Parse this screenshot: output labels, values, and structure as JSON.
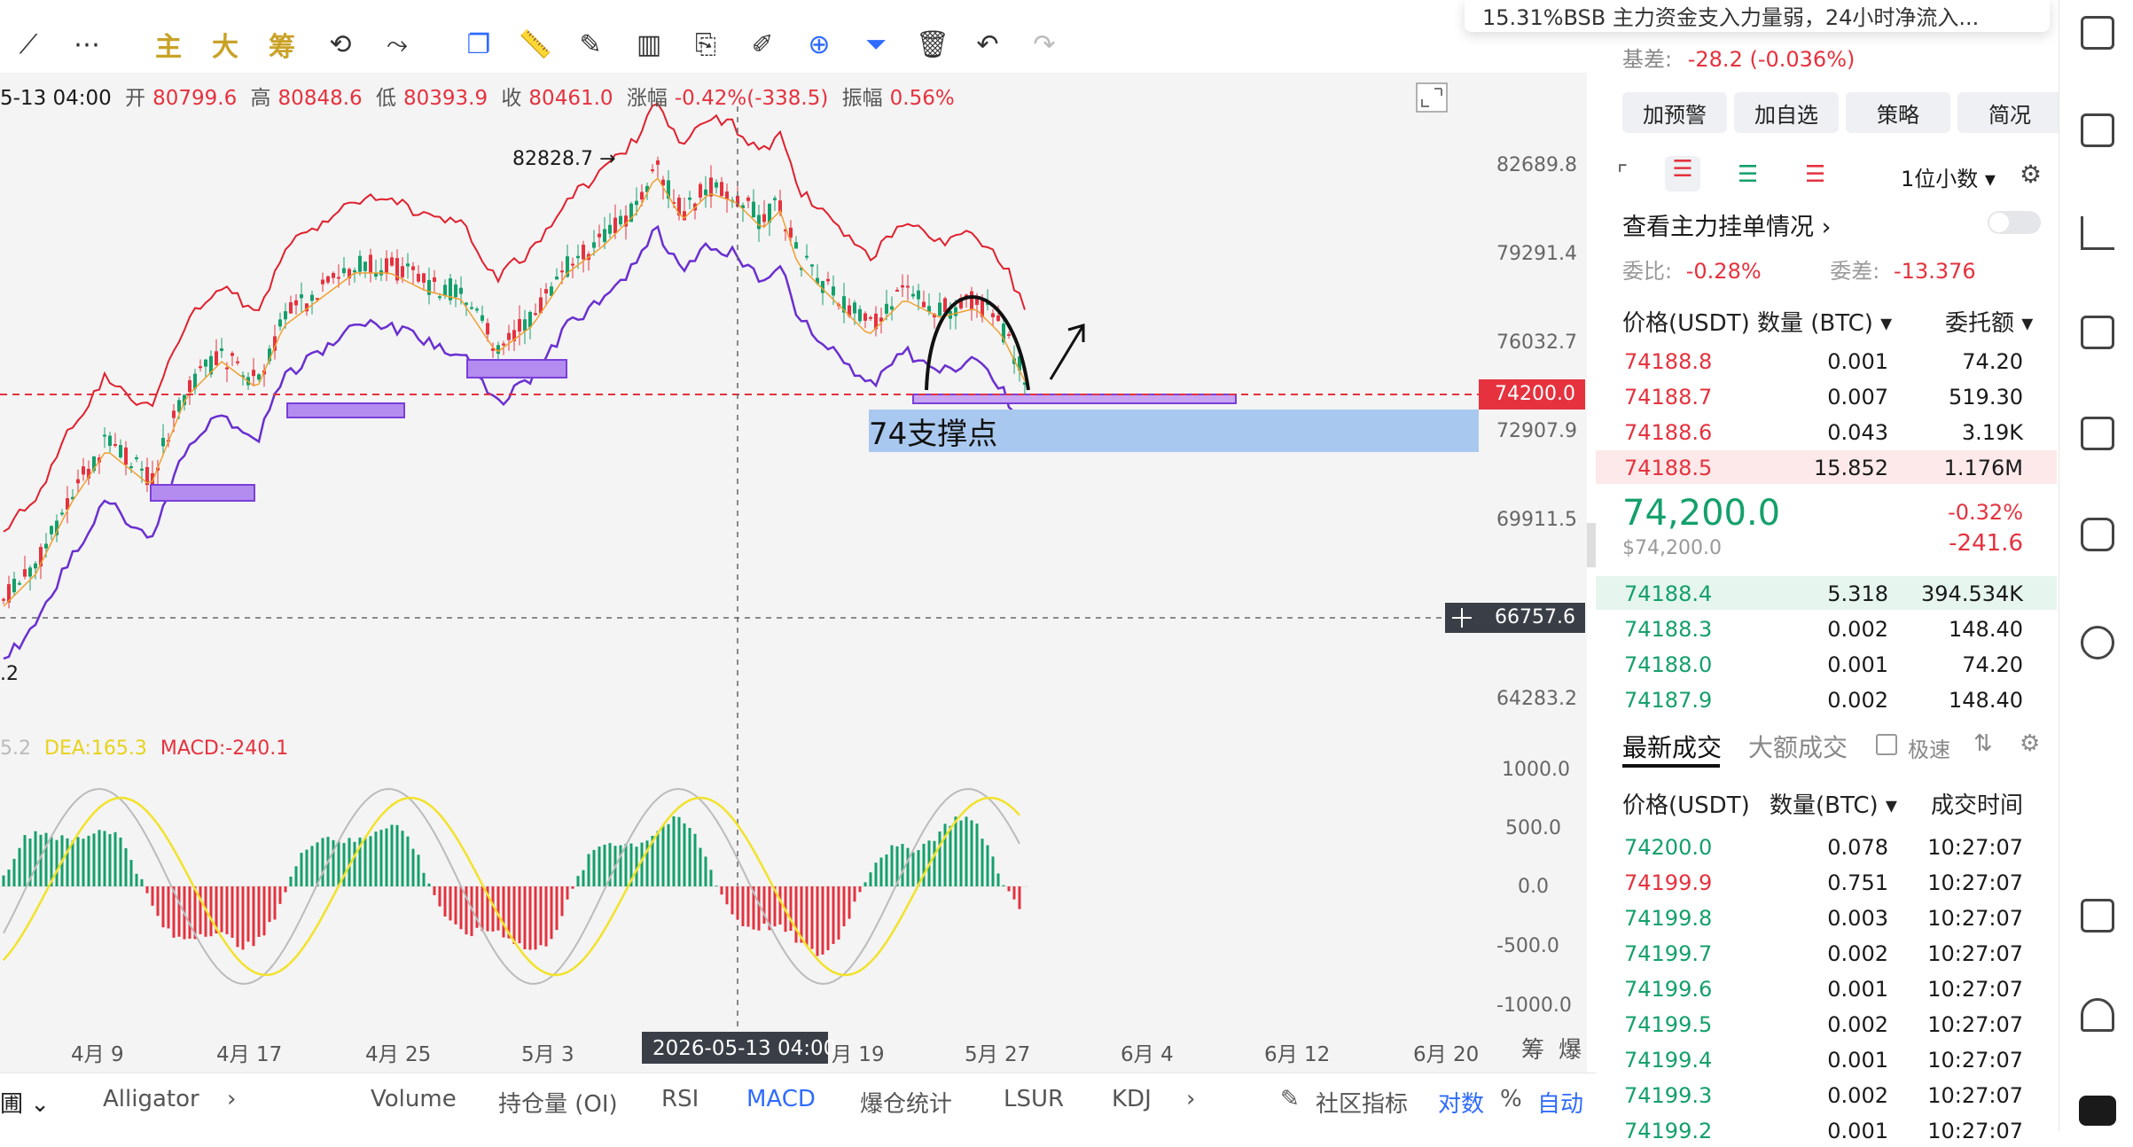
{
  "toolbar": {
    "zh_buttons": [
      "主",
      "大",
      "筹"
    ]
  },
  "ohlc": {
    "time": "5-13 04:00",
    "open_label": "开",
    "open": "80799.6",
    "high_label": "高",
    "high": "80848.6",
    "low_label": "低",
    "low": "80393.9",
    "close_label": "收",
    "close": "80461.0",
    "chg_label": "涨幅",
    "chg": "-0.42%(-338.5)",
    "amp_label": "振幅",
    "amp": "0.56%"
  },
  "chart": {
    "high_annotation": "82828.7 →",
    "left_value": ".2",
    "support_label": "74支撑点",
    "current_price_tag": "74200.0",
    "crosshair_price_tag": "66757.6",
    "crosshair_time_tag": "2026-05-13 04:00",
    "price_axis": [
      "82689.8",
      "79291.4",
      "76032.7",
      "72907.9",
      "69911.5",
      "64283.2"
    ],
    "macd_axis": [
      "1000.0",
      "500.0",
      "0.0",
      "-500.0",
      "-1000.0"
    ],
    "time_axis": [
      "4月 9",
      "4月 17",
      "4月 25",
      "5月 3",
      "月 19",
      "5月 27",
      "6月 4",
      "6月 12",
      "6月 20"
    ],
    "corner_labels": [
      "筹",
      "爆"
    ]
  },
  "chart_data": {
    "type": "line",
    "title": "",
    "macd_legend": {
      "dif_fragment": "5.2",
      "dea": "DEA:165.3",
      "macd": "MACD:-240.1"
    }
  },
  "bottom_bar": {
    "left_fragment": "圃",
    "items": [
      "Alligator",
      "Volume",
      "持仓量 (OI)",
      "RSI",
      "MACD",
      "爆仓统计",
      "LSUR",
      "KDJ"
    ],
    "community": "社区指标",
    "log": "对数",
    "pct": "%",
    "auto": "自动"
  },
  "notice": {
    "text": "15.31%BSB 主力资金支入力量弱，24小时净流入..."
  },
  "panel": {
    "basis_label": "基差:",
    "basis_value": "-28.2 (-0.036%)",
    "buttons": [
      "加预警",
      "加自选",
      "策略",
      "简况"
    ],
    "precision": "1位小数",
    "view_orders": "查看主力挂单情况",
    "ratio_label": "委比:",
    "ratio_value": "-0.28%",
    "diff_label": "委差:",
    "diff_value": "-13.376",
    "ob_headers": [
      "价格(USDT)",
      "数量 (BTC)",
      "委托额"
    ],
    "asks": [
      [
        "74188.8",
        "0.001",
        "74.20"
      ],
      [
        "74188.7",
        "0.007",
        "519.30"
      ],
      [
        "74188.6",
        "0.043",
        "3.19K"
      ],
      [
        "74188.5",
        "15.852",
        "1.176M"
      ]
    ],
    "last_price": "74,200.0",
    "last_usd": "$74,200.0",
    "last_pct": "-0.32%",
    "last_chg": "-241.6",
    "bids": [
      [
        "74188.4",
        "5.318",
        "394.534K"
      ],
      [
        "74188.3",
        "0.002",
        "148.40"
      ],
      [
        "74188.0",
        "0.001",
        "74.20"
      ],
      [
        "74187.9",
        "0.002",
        "148.40"
      ]
    ],
    "trades_tab_active": "最新成交",
    "trades_tab_other": "大额成交",
    "fast_label": "极速",
    "trade_headers": [
      "价格(USDT)",
      "数量(BTC)",
      "成交时间"
    ],
    "trades": [
      [
        "74200.0",
        "0.078",
        "10:27:07",
        "buy"
      ],
      [
        "74199.9",
        "0.751",
        "10:27:07",
        "sell"
      ],
      [
        "74199.8",
        "0.003",
        "10:27:07",
        "buy"
      ],
      [
        "74199.7",
        "0.002",
        "10:27:07",
        "buy"
      ],
      [
        "74199.6",
        "0.001",
        "10:27:07",
        "buy"
      ],
      [
        "74199.5",
        "0.002",
        "10:27:07",
        "buy"
      ],
      [
        "74199.4",
        "0.001",
        "10:27:07",
        "buy"
      ],
      [
        "74199.3",
        "0.002",
        "10:27:07",
        "buy"
      ],
      [
        "74199.2",
        "0.001",
        "10:27:07",
        "buy"
      ]
    ]
  },
  "colors": {
    "up": "#14a06b",
    "down": "#e5323e",
    "accent": "#2f6bff",
    "gold": "#c9a227",
    "band_upper": "#e0202e",
    "band_lower": "#6a2fd0",
    "band_mid": "#f0a030"
  }
}
